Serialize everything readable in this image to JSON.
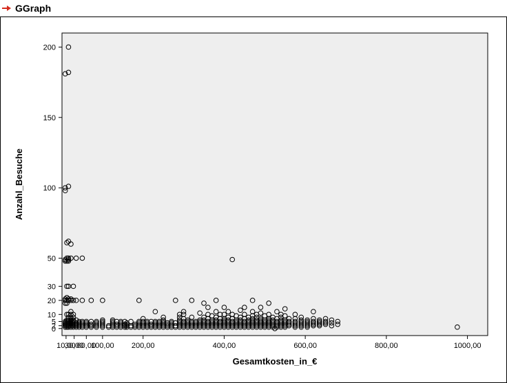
{
  "header": {
    "title": "GGraph",
    "arrow_color": "#d52b1e"
  },
  "chart": {
    "type": "scatter",
    "xlabel": "Gesamtkosten_in_€",
    "ylabel": "Anzahl_Besuche",
    "label_fontsize": 13,
    "label_fontweight": "bold",
    "tick_fontsize": 11,
    "plot_background": "#eeeeee",
    "page_background": "#ffffff",
    "axis_color": "#000000",
    "marker_stroke": "#000000",
    "marker_fill": "none",
    "marker_radius": 3.3,
    "marker_stroke_width": 1,
    "xticks": [
      10.0,
      30.0,
      60.0,
      100.0,
      200.0,
      400.0,
      600.0,
      800.0,
      1000.0
    ],
    "xtick_labels": [
      "10,00",
      "30,00",
      "60,00",
      "100,00",
      "200,00",
      "400,00",
      "600,00",
      "800,00",
      "1000,00"
    ],
    "yticks": [
      0,
      2,
      5,
      10,
      20,
      30,
      50,
      100,
      150,
      200
    ],
    "ytick_labels": [
      "0",
      "2",
      "5",
      "10",
      "20",
      "30",
      "50",
      "100",
      "150",
      "200"
    ],
    "xlim": [
      0,
      1050
    ],
    "ylim": [
      -5,
      210
    ],
    "points": [
      [
        8,
        181
      ],
      [
        8,
        100
      ],
      [
        8,
        98
      ],
      [
        8,
        49
      ],
      [
        8,
        48
      ],
      [
        8,
        20
      ],
      [
        8,
        18
      ],
      [
        8,
        21
      ],
      [
        8,
        5
      ],
      [
        8,
        4
      ],
      [
        8,
        3
      ],
      [
        8,
        2
      ],
      [
        8,
        1
      ],
      [
        12,
        61
      ],
      [
        12,
        50
      ],
      [
        12,
        48
      ],
      [
        12,
        30
      ],
      [
        12,
        20
      ],
      [
        12,
        22
      ],
      [
        12,
        18
      ],
      [
        12,
        10
      ],
      [
        12,
        6
      ],
      [
        12,
        5
      ],
      [
        12,
        4
      ],
      [
        12,
        3
      ],
      [
        12,
        2
      ],
      [
        12,
        1
      ],
      [
        16,
        200
      ],
      [
        16,
        182
      ],
      [
        16,
        101
      ],
      [
        16,
        62
      ],
      [
        16,
        50
      ],
      [
        16,
        49
      ],
      [
        16,
        48
      ],
      [
        16,
        30
      ],
      [
        16,
        21
      ],
      [
        16,
        20
      ],
      [
        16,
        10
      ],
      [
        16,
        8
      ],
      [
        16,
        6
      ],
      [
        16,
        5
      ],
      [
        16,
        4
      ],
      [
        16,
        3
      ],
      [
        16,
        2
      ],
      [
        16,
        1
      ],
      [
        22,
        60
      ],
      [
        22,
        50
      ],
      [
        22,
        21
      ],
      [
        22,
        20
      ],
      [
        22,
        12
      ],
      [
        22,
        10
      ],
      [
        22,
        7
      ],
      [
        22,
        6
      ],
      [
        22,
        5
      ],
      [
        22,
        4
      ],
      [
        22,
        3
      ],
      [
        22,
        2
      ],
      [
        22,
        1
      ],
      [
        28,
        30
      ],
      [
        28,
        20
      ],
      [
        28,
        10
      ],
      [
        28,
        8
      ],
      [
        28,
        6
      ],
      [
        28,
        5
      ],
      [
        28,
        4
      ],
      [
        28,
        3
      ],
      [
        28,
        2
      ],
      [
        28,
        1
      ],
      [
        35,
        50
      ],
      [
        35,
        20
      ],
      [
        35,
        6
      ],
      [
        35,
        4
      ],
      [
        35,
        3
      ],
      [
        35,
        2
      ],
      [
        35,
        1
      ],
      [
        42,
        5
      ],
      [
        42,
        4
      ],
      [
        42,
        3
      ],
      [
        42,
        2
      ],
      [
        42,
        1
      ],
      [
        50,
        50
      ],
      [
        50,
        20
      ],
      [
        50,
        5
      ],
      [
        50,
        4
      ],
      [
        50,
        3
      ],
      [
        50,
        2
      ],
      [
        50,
        1
      ],
      [
        60,
        5
      ],
      [
        60,
        4
      ],
      [
        60,
        3
      ],
      [
        60,
        2
      ],
      [
        60,
        1
      ],
      [
        72,
        20
      ],
      [
        72,
        5
      ],
      [
        72,
        3
      ],
      [
        72,
        2
      ],
      [
        72,
        1
      ],
      [
        85,
        5
      ],
      [
        85,
        4
      ],
      [
        85,
        3
      ],
      [
        85,
        2
      ],
      [
        85,
        1
      ],
      [
        100,
        20
      ],
      [
        100,
        6
      ],
      [
        100,
        5
      ],
      [
        100,
        4
      ],
      [
        100,
        3
      ],
      [
        100,
        2
      ],
      [
        100,
        1
      ],
      [
        115,
        2
      ],
      [
        115,
        1
      ],
      [
        125,
        6
      ],
      [
        125,
        5
      ],
      [
        125,
        4
      ],
      [
        125,
        3
      ],
      [
        125,
        2
      ],
      [
        125,
        1
      ],
      [
        135,
        5
      ],
      [
        135,
        3
      ],
      [
        135,
        2
      ],
      [
        135,
        1
      ],
      [
        145,
        5
      ],
      [
        145,
        4
      ],
      [
        145,
        3
      ],
      [
        145,
        2
      ],
      [
        145,
        1
      ],
      [
        155,
        5
      ],
      [
        155,
        3
      ],
      [
        155,
        2
      ],
      [
        155,
        1
      ],
      [
        160,
        4
      ],
      [
        160,
        3
      ],
      [
        160,
        2
      ],
      [
        160,
        1
      ],
      [
        170,
        5
      ],
      [
        170,
        2
      ],
      [
        170,
        1
      ],
      [
        180,
        3
      ],
      [
        180,
        2
      ],
      [
        180,
        1
      ],
      [
        190,
        20
      ],
      [
        190,
        5
      ],
      [
        190,
        4
      ],
      [
        190,
        3
      ],
      [
        190,
        2
      ],
      [
        190,
        1
      ],
      [
        200,
        7
      ],
      [
        200,
        5
      ],
      [
        200,
        4
      ],
      [
        200,
        3
      ],
      [
        200,
        2
      ],
      [
        200,
        1
      ],
      [
        210,
        5
      ],
      [
        210,
        4
      ],
      [
        210,
        3
      ],
      [
        210,
        2
      ],
      [
        210,
        1
      ],
      [
        220,
        5
      ],
      [
        220,
        3
      ],
      [
        220,
        2
      ],
      [
        220,
        1
      ],
      [
        230,
        12
      ],
      [
        230,
        5
      ],
      [
        230,
        4
      ],
      [
        230,
        3
      ],
      [
        230,
        2
      ],
      [
        230,
        1
      ],
      [
        240,
        5
      ],
      [
        240,
        4
      ],
      [
        240,
        3
      ],
      [
        240,
        2
      ],
      [
        240,
        1
      ],
      [
        250,
        8
      ],
      [
        250,
        6
      ],
      [
        250,
        5
      ],
      [
        250,
        4
      ],
      [
        250,
        3
      ],
      [
        250,
        2
      ],
      [
        250,
        1
      ],
      [
        260,
        4
      ],
      [
        260,
        3
      ],
      [
        260,
        2
      ],
      [
        260,
        1
      ],
      [
        270,
        5
      ],
      [
        270,
        4
      ],
      [
        270,
        3
      ],
      [
        270,
        2
      ],
      [
        270,
        1
      ],
      [
        280,
        20
      ],
      [
        280,
        4
      ],
      [
        280,
        2
      ],
      [
        280,
        1
      ],
      [
        290,
        10
      ],
      [
        290,
        8
      ],
      [
        290,
        6
      ],
      [
        290,
        5
      ],
      [
        290,
        4
      ],
      [
        290,
        3
      ],
      [
        290,
        2
      ],
      [
        290,
        1
      ],
      [
        300,
        12
      ],
      [
        300,
        10
      ],
      [
        300,
        7
      ],
      [
        300,
        5
      ],
      [
        300,
        4
      ],
      [
        300,
        3
      ],
      [
        300,
        2
      ],
      [
        300,
        1
      ],
      [
        310,
        6
      ],
      [
        310,
        5
      ],
      [
        310,
        4
      ],
      [
        310,
        3
      ],
      [
        310,
        2
      ],
      [
        310,
        1
      ],
      [
        320,
        20
      ],
      [
        320,
        8
      ],
      [
        320,
        5
      ],
      [
        320,
        4
      ],
      [
        320,
        3
      ],
      [
        320,
        2
      ],
      [
        320,
        1
      ],
      [
        330,
        5
      ],
      [
        330,
        4
      ],
      [
        330,
        3
      ],
      [
        330,
        2
      ],
      [
        330,
        1
      ],
      [
        340,
        11
      ],
      [
        340,
        6
      ],
      [
        340,
        5
      ],
      [
        340,
        4
      ],
      [
        340,
        3
      ],
      [
        340,
        2
      ],
      [
        340,
        1
      ],
      [
        350,
        18
      ],
      [
        350,
        8
      ],
      [
        350,
        6
      ],
      [
        350,
        5
      ],
      [
        350,
        4
      ],
      [
        350,
        3
      ],
      [
        350,
        2
      ],
      [
        350,
        1
      ],
      [
        360,
        15
      ],
      [
        360,
        10
      ],
      [
        360,
        7
      ],
      [
        360,
        5
      ],
      [
        360,
        4
      ],
      [
        360,
        3
      ],
      [
        360,
        2
      ],
      [
        360,
        1
      ],
      [
        370,
        9
      ],
      [
        370,
        6
      ],
      [
        370,
        5
      ],
      [
        370,
        4
      ],
      [
        370,
        3
      ],
      [
        370,
        2
      ],
      [
        370,
        1
      ],
      [
        380,
        20
      ],
      [
        380,
        12
      ],
      [
        380,
        8
      ],
      [
        380,
        6
      ],
      [
        380,
        5
      ],
      [
        380,
        4
      ],
      [
        380,
        3
      ],
      [
        380,
        2
      ],
      [
        380,
        1
      ],
      [
        390,
        10
      ],
      [
        390,
        7
      ],
      [
        390,
        5
      ],
      [
        390,
        4
      ],
      [
        390,
        3
      ],
      [
        390,
        2
      ],
      [
        390,
        1
      ],
      [
        400,
        15
      ],
      [
        400,
        10
      ],
      [
        400,
        7
      ],
      [
        400,
        6
      ],
      [
        400,
        5
      ],
      [
        400,
        4
      ],
      [
        400,
        3
      ],
      [
        400,
        2
      ],
      [
        400,
        1
      ],
      [
        410,
        12
      ],
      [
        410,
        8
      ],
      [
        410,
        6
      ],
      [
        410,
        5
      ],
      [
        410,
        4
      ],
      [
        410,
        3
      ],
      [
        410,
        2
      ],
      [
        410,
        1
      ],
      [
        420,
        49
      ],
      [
        420,
        10
      ],
      [
        420,
        7
      ],
      [
        420,
        5
      ],
      [
        420,
        4
      ],
      [
        420,
        3
      ],
      [
        420,
        2
      ],
      [
        420,
        1
      ],
      [
        430,
        9
      ],
      [
        430,
        6
      ],
      [
        430,
        5
      ],
      [
        430,
        4
      ],
      [
        430,
        3
      ],
      [
        430,
        2
      ],
      [
        430,
        1
      ],
      [
        440,
        13
      ],
      [
        440,
        8
      ],
      [
        440,
        6
      ],
      [
        440,
        5
      ],
      [
        440,
        4
      ],
      [
        440,
        3
      ],
      [
        440,
        2
      ],
      [
        440,
        1
      ],
      [
        450,
        15
      ],
      [
        450,
        10
      ],
      [
        450,
        7
      ],
      [
        450,
        5
      ],
      [
        450,
        4
      ],
      [
        450,
        3
      ],
      [
        450,
        2
      ],
      [
        450,
        1
      ],
      [
        460,
        8
      ],
      [
        460,
        6
      ],
      [
        460,
        5
      ],
      [
        460,
        4
      ],
      [
        460,
        3
      ],
      [
        460,
        2
      ],
      [
        460,
        1
      ],
      [
        470,
        20
      ],
      [
        470,
        12
      ],
      [
        470,
        9
      ],
      [
        470,
        7
      ],
      [
        470,
        6
      ],
      [
        470,
        5
      ],
      [
        470,
        4
      ],
      [
        470,
        3
      ],
      [
        470,
        2
      ],
      [
        470,
        1
      ],
      [
        480,
        10
      ],
      [
        480,
        8
      ],
      [
        480,
        6
      ],
      [
        480,
        5
      ],
      [
        480,
        4
      ],
      [
        480,
        3
      ],
      [
        480,
        2
      ],
      [
        480,
        1
      ],
      [
        490,
        15
      ],
      [
        490,
        11
      ],
      [
        490,
        7
      ],
      [
        490,
        6
      ],
      [
        490,
        5
      ],
      [
        490,
        4
      ],
      [
        490,
        3
      ],
      [
        490,
        2
      ],
      [
        490,
        1
      ],
      [
        500,
        9
      ],
      [
        500,
        6
      ],
      [
        500,
        5
      ],
      [
        500,
        4
      ],
      [
        500,
        3
      ],
      [
        500,
        2
      ],
      [
        500,
        1
      ],
      [
        510,
        18
      ],
      [
        510,
        10
      ],
      [
        510,
        7
      ],
      [
        510,
        6
      ],
      [
        510,
        5
      ],
      [
        510,
        4
      ],
      [
        510,
        3
      ],
      [
        510,
        2
      ],
      [
        510,
        1
      ],
      [
        520,
        8
      ],
      [
        520,
        6
      ],
      [
        520,
        5
      ],
      [
        520,
        4
      ],
      [
        520,
        3
      ],
      [
        520,
        2
      ],
      [
        520,
        1
      ],
      [
        525,
        0
      ],
      [
        530,
        12
      ],
      [
        530,
        7
      ],
      [
        530,
        5
      ],
      [
        530,
        4
      ],
      [
        530,
        3
      ],
      [
        530,
        2
      ],
      [
        530,
        1
      ],
      [
        540,
        10
      ],
      [
        540,
        8
      ],
      [
        540,
        6
      ],
      [
        540,
        5
      ],
      [
        540,
        4
      ],
      [
        540,
        3
      ],
      [
        540,
        2
      ],
      [
        540,
        1
      ],
      [
        550,
        14
      ],
      [
        550,
        9
      ],
      [
        550,
        6
      ],
      [
        550,
        5
      ],
      [
        550,
        4
      ],
      [
        550,
        3
      ],
      [
        550,
        2
      ],
      [
        550,
        1
      ],
      [
        560,
        7
      ],
      [
        560,
        5
      ],
      [
        560,
        4
      ],
      [
        560,
        3
      ],
      [
        560,
        2
      ],
      [
        575,
        10
      ],
      [
        575,
        7
      ],
      [
        575,
        5
      ],
      [
        575,
        4
      ],
      [
        575,
        3
      ],
      [
        575,
        2
      ],
      [
        575,
        1
      ],
      [
        590,
        8
      ],
      [
        590,
        6
      ],
      [
        590,
        5
      ],
      [
        590,
        4
      ],
      [
        590,
        3
      ],
      [
        590,
        2
      ],
      [
        590,
        1
      ],
      [
        605,
        6
      ],
      [
        605,
        5
      ],
      [
        605,
        4
      ],
      [
        605,
        3
      ],
      [
        605,
        2
      ],
      [
        605,
        1
      ],
      [
        620,
        12
      ],
      [
        620,
        7
      ],
      [
        620,
        5
      ],
      [
        620,
        4
      ],
      [
        620,
        3
      ],
      [
        620,
        2
      ],
      [
        635,
        6
      ],
      [
        635,
        5
      ],
      [
        635,
        4
      ],
      [
        635,
        3
      ],
      [
        635,
        2
      ],
      [
        650,
        7
      ],
      [
        650,
        5
      ],
      [
        650,
        4
      ],
      [
        650,
        3
      ],
      [
        665,
        6
      ],
      [
        665,
        4
      ],
      [
        665,
        2
      ],
      [
        680,
        5
      ],
      [
        680,
        3
      ],
      [
        975,
        1
      ]
    ]
  }
}
